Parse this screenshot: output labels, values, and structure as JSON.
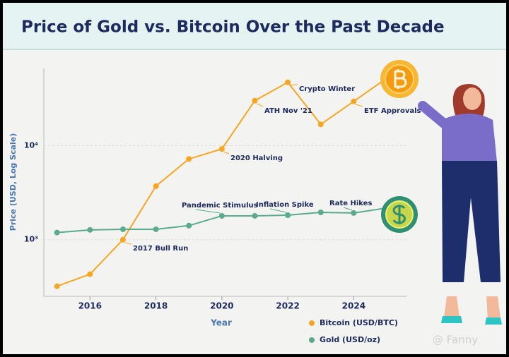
{
  "chart_data": {
    "type": "line",
    "title": "Price of Gold vs. Bitcoin Over the Past Decade",
    "x_label": "Year",
    "y_label": "Price (USD, Log Scale)",
    "x": [
      2015,
      2016,
      2017,
      2018,
      2019,
      2020,
      2021,
      2022,
      2023,
      2024,
      2025
    ],
    "xlim": [
      2014.6,
      2025.6
    ],
    "xticks": [
      2016,
      2018,
      2020,
      2022,
      2024
    ],
    "ylim": [
      250,
      66000
    ],
    "yticks": [
      {
        "value": 1000,
        "label": "10³"
      },
      {
        "value": 10000,
        "label": "10⁴"
      }
    ],
    "log_y": true,
    "grid": true,
    "legend": "bottom-right",
    "series": [
      {
        "name": "Bitcoin (USD/BTC)",
        "color": "#f5a623",
        "values": [
          320,
          430,
          1000,
          3700,
          7200,
          9200,
          30000,
          47000,
          16800,
          29500,
          52000
        ]
      },
      {
        "name": "Gold (USD/oz)",
        "color": "#5aaa8e",
        "values": [
          1190,
          1270,
          1290,
          1290,
          1410,
          1790,
          1790,
          1820,
          1950,
          1920,
          2170
        ]
      }
    ],
    "annotations": [
      "2017 Bull Run",
      "2020 Halving",
      "ATH Nov '21",
      "Crypto Winter",
      "ETF Approvals",
      "Pandemic Stimulus",
      "Inflation Spike",
      "Rate Hikes"
    ]
  },
  "watermark": "@ Fanny"
}
